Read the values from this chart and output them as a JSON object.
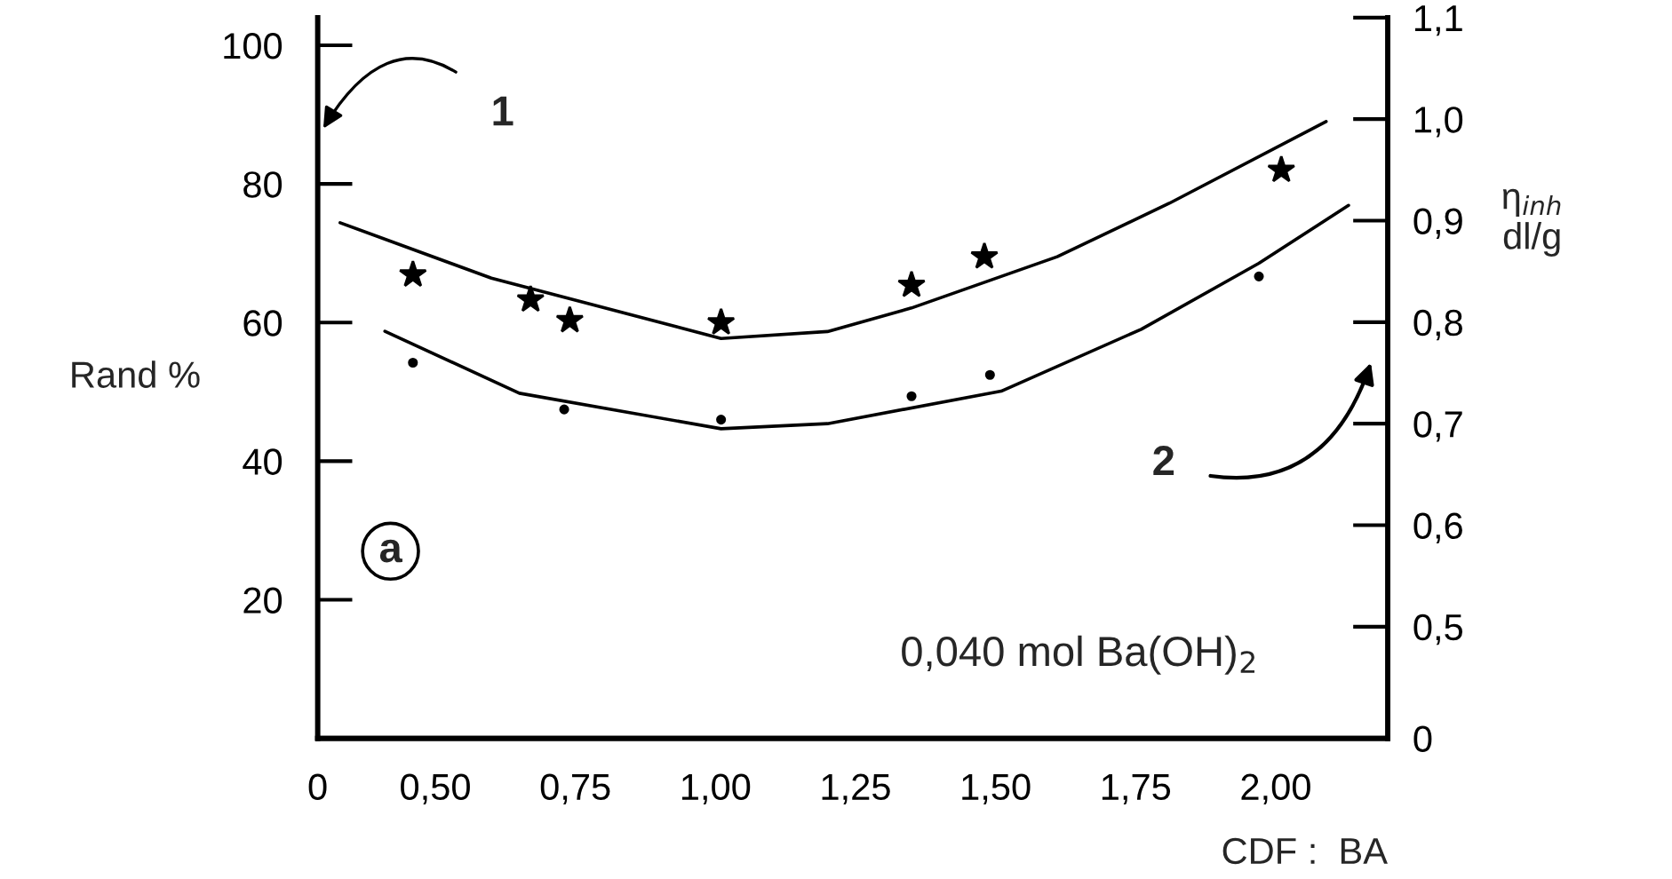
{
  "chart_data": {
    "type": "line",
    "xlabel": "CDF :  BA",
    "ylabel": "Rand %",
    "y2label": "η$_{inh}$\ndl/g",
    "annotations": [
      "1",
      "2",
      "a",
      "0,040 mol Ba(OH)$_{2}$"
    ],
    "xlim": [
      0.29,
      2.2
    ],
    "xticks": [
      {
        "value": 0.29,
        "label": "0"
      },
      {
        "value": 0.5,
        "label": "0,50"
      },
      {
        "value": 0.75,
        "label": "0,75"
      },
      {
        "value": 1.0,
        "label": "1,00"
      },
      {
        "value": 1.25,
        "label": "1,25"
      },
      {
        "value": 1.5,
        "label": "1,50"
      },
      {
        "value": 1.75,
        "label": "1,75"
      },
      {
        "value": 2.0,
        "label": "2,00"
      }
    ],
    "ylim": [
      0,
      104
    ],
    "yticks": [
      20,
      40,
      60,
      80,
      100
    ],
    "y2lim": [
      0.39,
      1.1
    ],
    "y2ticks": [
      {
        "value": 0.39,
        "label": "0"
      },
      {
        "value": 0.5,
        "label": "0,5"
      },
      {
        "value": 0.6,
        "label": "0,6"
      },
      {
        "value": 0.7,
        "label": "0,7"
      },
      {
        "value": 0.8,
        "label": "0,8"
      },
      {
        "value": 0.9,
        "label": "0,9"
      },
      {
        "value": 1.0,
        "label": "1,0"
      },
      {
        "value": 1.1,
        "label": "1,1"
      }
    ],
    "grid": false,
    "series": [
      {
        "type": "scatter",
        "marker": "star",
        "color": "#000000",
        "x": [
          0.46,
          0.67,
          0.74,
          1.01,
          1.35,
          1.48,
          2.01
        ],
        "values": [
          66.9,
          63.3,
          60.3,
          60.0,
          65.4,
          69.5,
          82.0
        ]
      },
      {
        "color": "#000000",
        "x": [
          0.33,
          0.6,
          1.01,
          1.2,
          1.35,
          1.61,
          1.81,
          2.09
        ],
        "values": [
          74.4,
          66.4,
          57.7,
          58.7,
          62.1,
          69.5,
          77.2,
          89.0
        ]
      },
      {
        "type": "scatter",
        "marker": "circle",
        "axis": "y2",
        "color": "#000000",
        "x": [
          0.46,
          0.73,
          1.01,
          1.35,
          1.49,
          1.97
        ],
        "values": [
          0.76,
          0.714,
          0.704,
          0.727,
          0.748,
          0.845
        ]
      },
      {
        "axis": "y2",
        "color": "#000000",
        "x": [
          0.41,
          0.65,
          1.01,
          1.2,
          1.51,
          1.76,
          1.97,
          2.13
        ],
        "values": [
          0.791,
          0.73,
          0.695,
          0.7,
          0.732,
          0.793,
          0.858,
          0.915
        ]
      }
    ]
  }
}
